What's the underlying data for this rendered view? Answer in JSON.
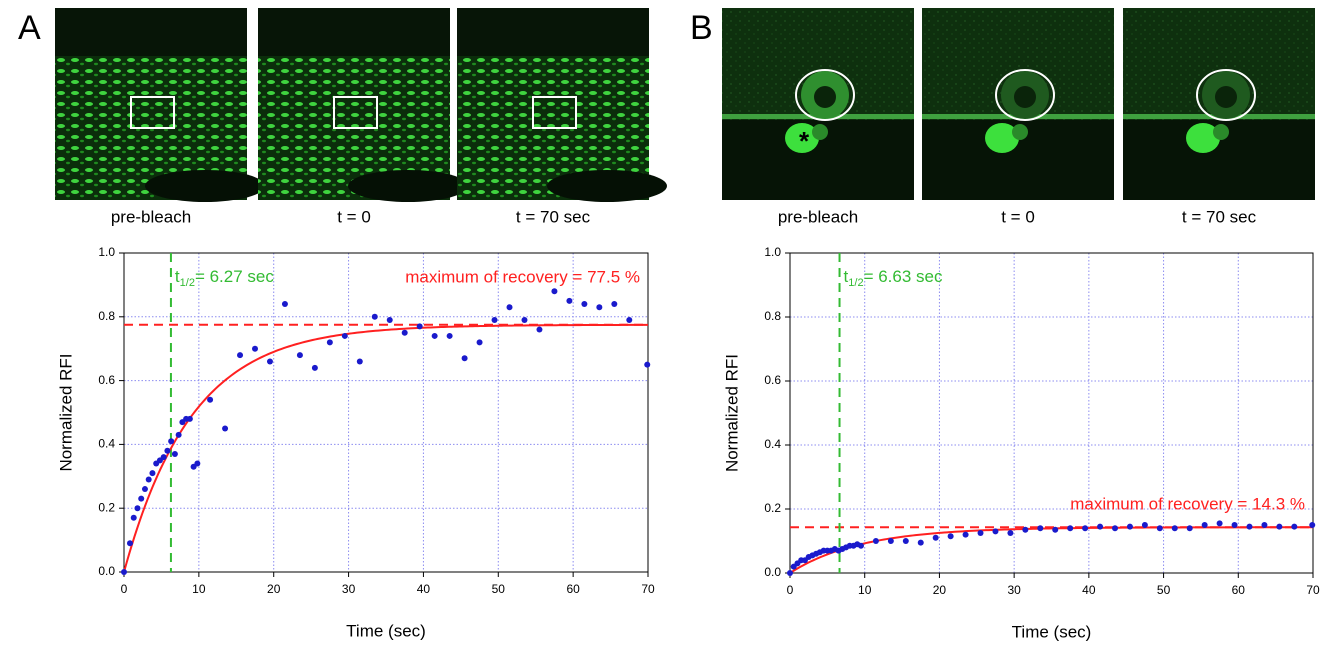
{
  "panels": [
    {
      "label": "A",
      "captions": [
        "pre-bleach",
        "t = 0",
        "t = 70 sec"
      ]
    },
    {
      "label": "B",
      "captions": [
        "pre-bleach",
        "t = 0",
        "t = 70 sec"
      ],
      "asterisk": "*"
    }
  ],
  "chart_data": [
    {
      "type": "scatter",
      "x_label": "Time (sec)",
      "y_label": "Normalized RFI",
      "xlim": [
        0,
        70
      ],
      "ylim": [
        0,
        1
      ],
      "xticks": [
        0,
        10,
        20,
        30,
        40,
        50,
        60,
        70
      ],
      "yticks": [
        {
          "value": 0,
          "label": "0.0"
        },
        0.2,
        0.4,
        0.6,
        0.8,
        {
          "value": 1,
          "label": "1.0"
        }
      ],
      "grid": true,
      "color": "#1a1acc",
      "x": [
        0,
        0.8,
        1.3,
        1.8,
        2.3,
        2.8,
        3.3,
        3.8,
        4.3,
        4.8,
        5.3,
        5.8,
        6.3,
        6.8,
        7.3,
        7.8,
        8.3,
        8.8,
        9.3,
        9.8,
        11.5,
        13.5,
        15.5,
        17.5,
        19.5,
        21.5,
        23.5,
        25.5,
        27.5,
        29.5,
        31.5,
        33.5,
        35.5,
        37.5,
        39.5,
        41.5,
        43.5,
        45.5,
        47.5,
        49.5,
        51.5,
        53.5,
        55.5,
        57.5,
        59.5,
        61.5,
        63.5,
        65.5,
        67.5,
        69.9
      ],
      "values": [
        0,
        0.09,
        0.17,
        0.2,
        0.23,
        0.26,
        0.29,
        0.31,
        0.34,
        0.35,
        0.36,
        0.38,
        0.41,
        0.37,
        0.43,
        0.47,
        0.48,
        0.48,
        0.33,
        0.34,
        0.54,
        0.45,
        0.68,
        0.7,
        0.66,
        0.84,
        0.68,
        0.64,
        0.72,
        0.74,
        0.66,
        0.8,
        0.79,
        0.75,
        0.77,
        0.74,
        0.74,
        0.67,
        0.72,
        0.79,
        0.83,
        0.79,
        0.76,
        0.88,
        0.85,
        0.84,
        0.83,
        0.84,
        0.79,
        0.65
      ],
      "fit_color": "#ff2020",
      "half_time": {
        "value": 6.27,
        "prefix": "t",
        "subscript": "1/2",
        "label": "= 6.27 sec",
        "color": "#33bb33"
      },
      "plateau": {
        "value": 0.775,
        "label": "maximum of recovery = 77.5 %",
        "color": "#ff2020"
      }
    },
    {
      "type": "scatter",
      "x_label": "Time (sec)",
      "y_label": "Normalized RFI",
      "xlim": [
        0,
        70
      ],
      "ylim": [
        0,
        1
      ],
      "xticks": [
        0,
        10,
        20,
        30,
        40,
        50,
        60,
        70
      ],
      "yticks": [
        {
          "value": 0,
          "label": "0.0"
        },
        0.2,
        0.4,
        0.6,
        0.8,
        {
          "value": 1,
          "label": "1.0"
        }
      ],
      "grid": true,
      "color": "#1a1acc",
      "x": [
        0,
        0.5,
        1,
        1.5,
        2,
        2.5,
        3,
        3.5,
        4,
        4.5,
        5,
        5.5,
        6,
        6.5,
        7,
        7.5,
        8,
        8.5,
        9,
        9.5,
        11.5,
        13.5,
        15.5,
        17.5,
        19.5,
        21.5,
        23.5,
        25.5,
        27.5,
        29.5,
        31.5,
        33.5,
        35.5,
        37.5,
        39.5,
        41.5,
        43.5,
        45.5,
        47.5,
        49.5,
        51.5,
        53.5,
        55.5,
        57.5,
        59.5,
        61.5,
        63.5,
        65.5,
        67.5,
        69.9
      ],
      "values": [
        0,
        0.02,
        0.03,
        0.04,
        0.04,
        0.05,
        0.055,
        0.06,
        0.065,
        0.07,
        0.07,
        0.07,
        0.075,
        0.07,
        0.075,
        0.08,
        0.085,
        0.085,
        0.09,
        0.085,
        0.1,
        0.1,
        0.1,
        0.095,
        0.11,
        0.115,
        0.12,
        0.125,
        0.13,
        0.125,
        0.135,
        0.14,
        0.135,
        0.14,
        0.14,
        0.145,
        0.14,
        0.145,
        0.15,
        0.14,
        0.14,
        0.14,
        0.15,
        0.155,
        0.15,
        0.145,
        0.15,
        0.145,
        0.145,
        0.15
      ],
      "fit_color": "#ff2020",
      "half_time": {
        "value": 6.63,
        "prefix": "t",
        "subscript": "1/2",
        "label": "= 6.63 sec",
        "color": "#33bb33"
      },
      "plateau": {
        "value": 0.143,
        "label": "maximum of recovery = 14.3 %",
        "color": "#ff2020"
      }
    }
  ]
}
